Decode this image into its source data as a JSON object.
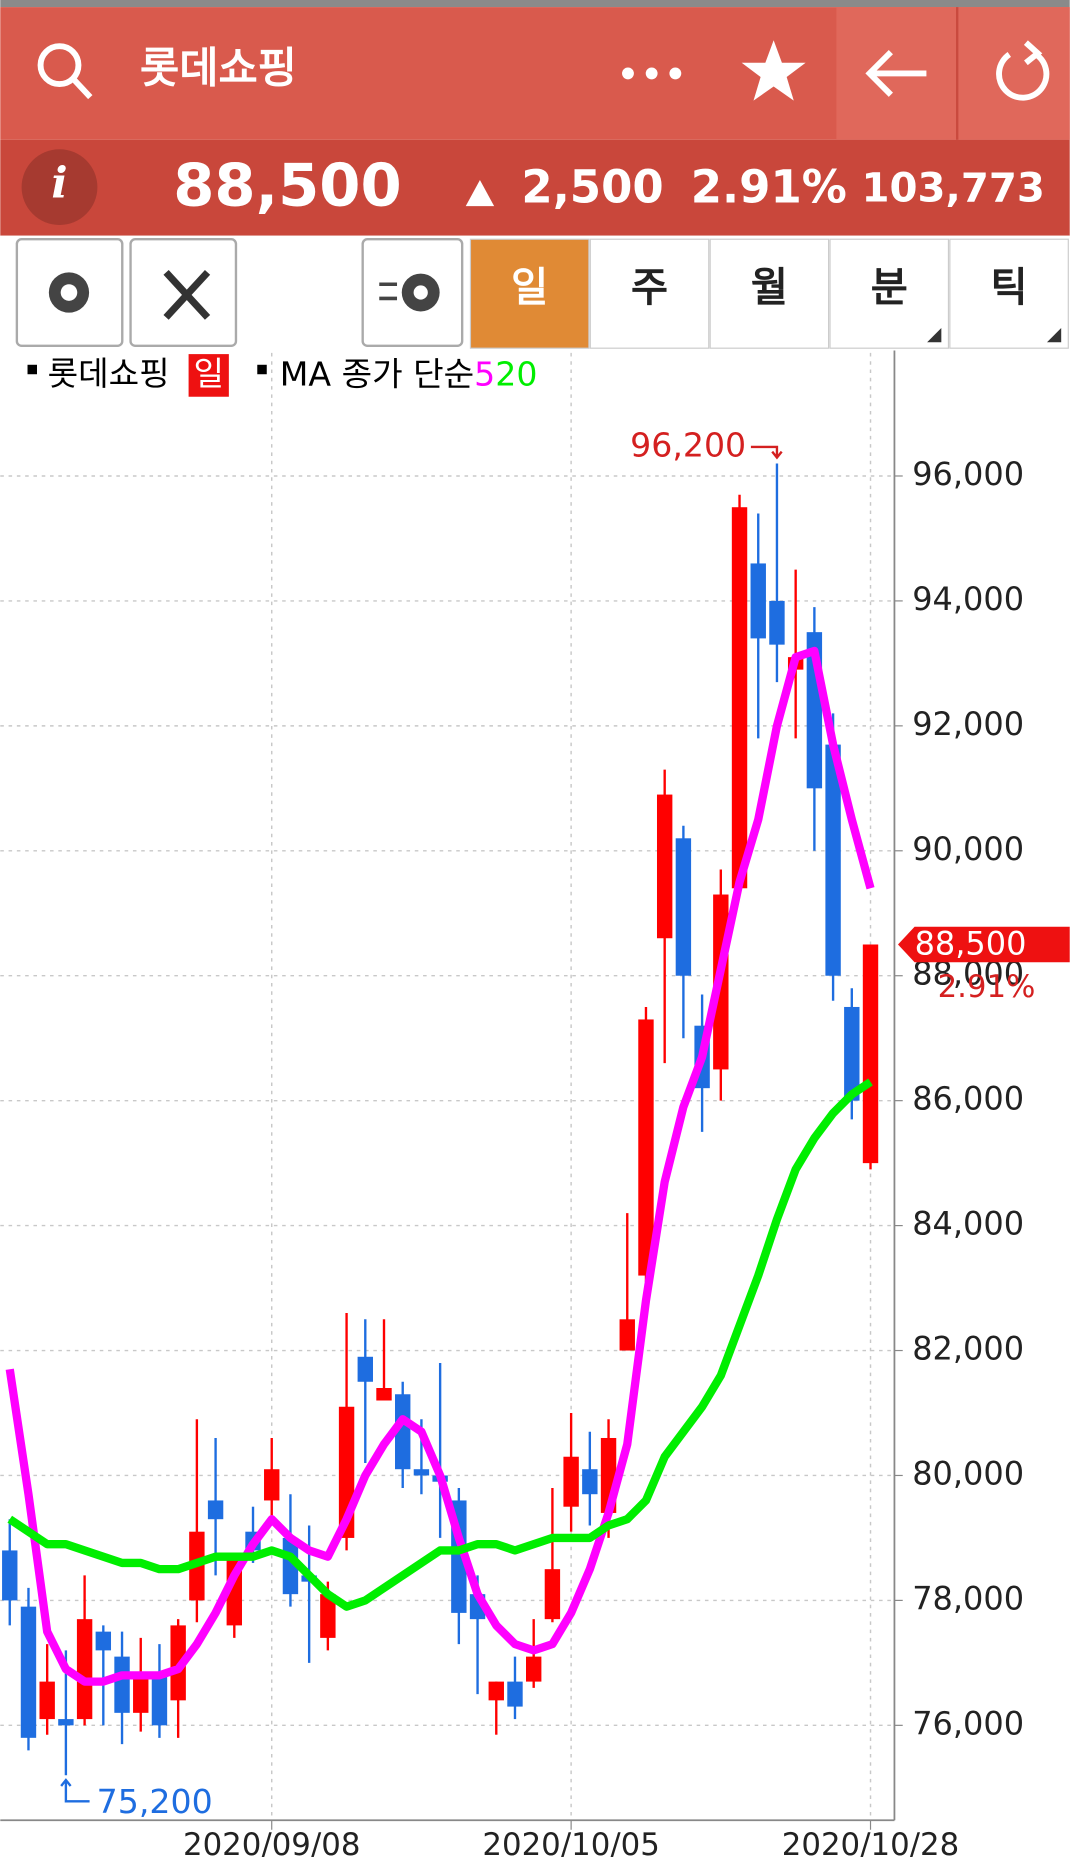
{
  "header": {
    "title": "롯데쇼핑"
  },
  "quote": {
    "price": "88,500",
    "change": "2,500",
    "rate": "2.91%",
    "volume": "103,773"
  },
  "tabs": [
    "일",
    "주",
    "월",
    "분",
    "틱"
  ],
  "selected_tab": 0,
  "chart_data": {
    "type": "candlestick",
    "name": "롯데쇼핑",
    "period": "일",
    "legend_text": "MA 종가 단순",
    "categories": [
      null,
      null,
      null,
      null,
      null,
      null,
      null,
      null,
      null,
      null,
      null,
      null,
      null,
      null,
      "2020/09/08",
      null,
      null,
      null,
      null,
      null,
      null,
      null,
      null,
      null,
      null,
      null,
      null,
      null,
      null,
      null,
      "2020/10/05",
      null,
      null,
      null,
      null,
      null,
      null,
      null,
      null,
      null,
      null,
      null,
      null,
      null,
      null,
      null,
      "2020/10/28"
    ],
    "open": [
      78800,
      77900,
      76100,
      76100,
      76100,
      77500,
      77100,
      76200,
      76800,
      76400,
      78000,
      79600,
      77600,
      79100,
      79600,
      79000,
      78400,
      77400,
      79000,
      81900,
      81200,
      81300,
      80100,
      80000,
      79600,
      78100,
      76400,
      76700,
      76700,
      77700,
      79500,
      80100,
      79400,
      82000,
      83200,
      88600,
      90200,
      87200,
      86500,
      89400,
      94600,
      94000,
      92900,
      93500,
      91700,
      87500,
      85000
    ],
    "high": [
      79300,
      78200,
      77300,
      77200,
      78400,
      77600,
      77500,
      77400,
      77300,
      77700,
      80900,
      80600,
      78700,
      79500,
      80600,
      79700,
      79200,
      78300,
      82600,
      82500,
      82500,
      81500,
      80900,
      81800,
      79800,
      78400,
      76700,
      77100,
      77700,
      79800,
      81000,
      80700,
      80900,
      84200,
      87500,
      91300,
      90400,
      87700,
      89700,
      95700,
      95400,
      96200,
      94500,
      93900,
      92200,
      87800,
      88500
    ],
    "low": [
      77600,
      75600,
      75850,
      75200,
      76000,
      76000,
      75700,
      75900,
      75800,
      75800,
      77650,
      78400,
      77400,
      78600,
      79300,
      77900,
      77000,
      77200,
      78800,
      80200,
      81200,
      79800,
      79700,
      79000,
      77300,
      76500,
      75850,
      76100,
      76600,
      77650,
      79100,
      79200,
      79000,
      82000,
      83100,
      86600,
      87000,
      85500,
      86000,
      89400,
      91800,
      92700,
      91800,
      90000,
      87600,
      85700,
      84900
    ],
    "close": [
      78000,
      75800,
      76700,
      76000,
      77700,
      77200,
      76200,
      76800,
      76000,
      77600,
      79100,
      79300,
      78700,
      78800,
      80100,
      78100,
      78300,
      78100,
      81100,
      81500,
      81400,
      80100,
      80000,
      79900,
      77800,
      77700,
      76700,
      76300,
      77100,
      78500,
      80300,
      79700,
      80600,
      82500,
      87300,
      90900,
      88000,
      86200,
      89300,
      95500,
      93400,
      93300,
      93100,
      91000,
      88000,
      86000,
      88500
    ],
    "up_color": "#ff0000",
    "down_color": "#1e6de0",
    "series": [
      {
        "name": "5",
        "color": "#ff00ff",
        "values": [
          81700,
          79700,
          77500,
          76900,
          76700,
          76700,
          76800,
          76800,
          76800,
          76900,
          77300,
          77800,
          78400,
          78900,
          79300,
          79000,
          78800,
          78700,
          79300,
          80000,
          80500,
          80900,
          80700,
          80000,
          79000,
          78100,
          77600,
          77300,
          77200,
          77300,
          77800,
          78500,
          79400,
          80500,
          82800,
          84700,
          85900,
          86700,
          88100,
          89500,
          90500,
          92000,
          93100,
          93200,
          91700,
          90500,
          89400
        ]
      },
      {
        "name": "20",
        "color": "#00ee00",
        "values": [
          79300,
          79100,
          78900,
          78900,
          78800,
          78700,
          78600,
          78600,
          78500,
          78500,
          78600,
          78700,
          78700,
          78700,
          78800,
          78700,
          78400,
          78100,
          77900,
          78000,
          78200,
          78400,
          78600,
          78800,
          78800,
          78900,
          78900,
          78800,
          78900,
          79000,
          79000,
          79000,
          79200,
          79300,
          79600,
          80300,
          80700,
          81100,
          81600,
          82400,
          83200,
          84100,
          84900,
          85400,
          85800,
          86100,
          86300
        ]
      }
    ],
    "ylim": [
      74480,
      97970
    ],
    "yticks": [
      {
        "value": 76000,
        "label": "76,000"
      },
      {
        "value": 78000,
        "label": "78,000"
      },
      {
        "value": 80000,
        "label": "80,000"
      },
      {
        "value": 82000,
        "label": "82,000"
      },
      {
        "value": 84000,
        "label": "84,000"
      },
      {
        "value": 86000,
        "label": "86,000"
      },
      {
        "value": 88000,
        "label": "88,000"
      },
      {
        "value": 90000,
        "label": "90,000"
      },
      {
        "value": 92000,
        "label": "92,000"
      },
      {
        "value": 94000,
        "label": "94,000"
      },
      {
        "value": 96000,
        "label": "96,000"
      }
    ],
    "grid": true,
    "annotations": [
      {
        "value": 96200,
        "label": "96,200",
        "color": "#d42020"
      },
      {
        "value": 75200,
        "label": "75,200",
        "color": "#1e6de0"
      }
    ],
    "last": {
      "value": 88500,
      "label": "88,500",
      "change": "2.91%"
    }
  }
}
